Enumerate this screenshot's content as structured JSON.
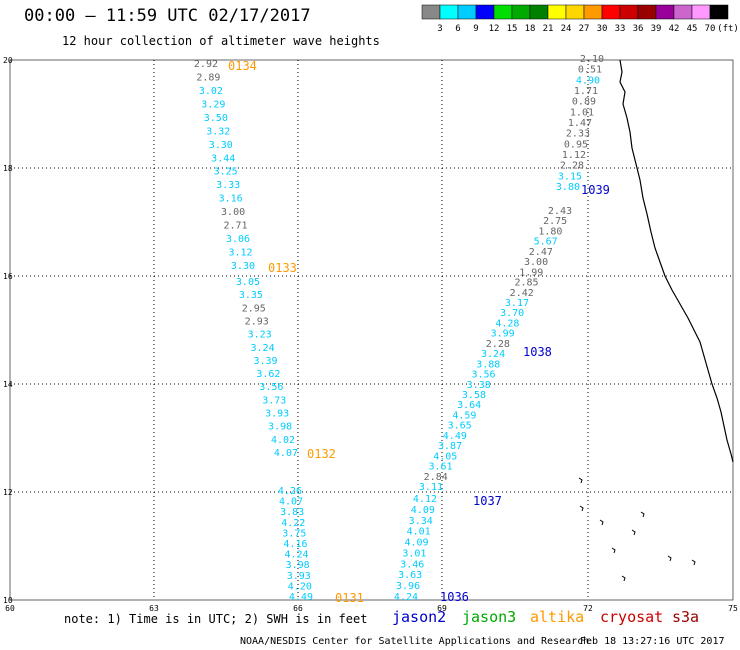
{
  "title": "00:00 – 11:59 UTC 02/17/2017",
  "subtitle": "12 hour collection of altimeter wave heights",
  "colorbar": {
    "colors": [
      "#888888",
      "#00ffff",
      "#00ccff",
      "#0000ff",
      "#00dd00",
      "#00aa00",
      "#008000",
      "#ffff00",
      "#ffd700",
      "#ff9900",
      "#ff0000",
      "#cc0000",
      "#990000",
      "#990099",
      "#cc66cc",
      "#ff99ff",
      "#000000"
    ],
    "labels": [
      "3",
      "6",
      "9",
      "12",
      "15",
      "18",
      "21",
      "24",
      "27",
      "30",
      "33",
      "36",
      "39",
      "42",
      "45",
      "70",
      "(ft)"
    ]
  },
  "map": {
    "lon_ticks": [
      "60",
      "63",
      "66",
      "69",
      "72",
      "75"
    ],
    "lat_ticks": [
      "20",
      "18",
      "16",
      "14",
      "12",
      "10"
    ]
  },
  "tracks": [
    {
      "pass": "0134",
      "pass_color": "#ff9900",
      "points": [
        {
          "v": "2.92",
          "c": "#666666"
        },
        {
          "v": "2.89",
          "c": "#666666"
        },
        {
          "v": "3.02",
          "c": "#00ccff"
        },
        {
          "v": "3.29",
          "c": "#00ccff"
        },
        {
          "v": "3.50",
          "c": "#00ccff"
        },
        {
          "v": "3.32",
          "c": "#00ccff"
        },
        {
          "v": "3.30",
          "c": "#00ccff"
        },
        {
          "v": "3.44",
          "c": "#00ccff"
        },
        {
          "v": "3.25",
          "c": "#00ccff"
        },
        {
          "v": "3.33",
          "c": "#00ccff"
        },
        {
          "v": "3.16",
          "c": "#00ccff"
        },
        {
          "v": "3.00",
          "c": "#666666"
        },
        {
          "v": "2.71",
          "c": "#666666"
        },
        {
          "v": "3.06",
          "c": "#00ccff"
        },
        {
          "v": "3.12",
          "c": "#00ccff"
        },
        {
          "v": "3.30",
          "c": "#00ccff"
        }
      ]
    },
    {
      "pass": "0133",
      "pass_color": "#ff9900",
      "points": [
        {
          "v": "3.05",
          "c": "#00ccff"
        },
        {
          "v": "3.35",
          "c": "#00ccff"
        },
        {
          "v": "2.95",
          "c": "#666666"
        },
        {
          "v": "2.93",
          "c": "#666666"
        },
        {
          "v": "3.23",
          "c": "#00ccff"
        },
        {
          "v": "3.24",
          "c": "#00ccff"
        },
        {
          "v": "3.39",
          "c": "#00ccff"
        },
        {
          "v": "3.62",
          "c": "#00ccff"
        },
        {
          "v": "3.56",
          "c": "#00ccff"
        },
        {
          "v": "3.73",
          "c": "#00ccff"
        },
        {
          "v": "3.93",
          "c": "#00ccff"
        },
        {
          "v": "3.98",
          "c": "#00ccff"
        },
        {
          "v": "4.02",
          "c": "#00ccff"
        },
        {
          "v": "4.07",
          "c": "#00ccff"
        }
      ]
    },
    {
      "pass": "0132",
      "pass_color": "#ff9900",
      "points": [
        {
          "v": "4.26",
          "c": "#00ccff"
        },
        {
          "v": "4.07",
          "c": "#00ccff"
        },
        {
          "v": "3.83",
          "c": "#00ccff"
        },
        {
          "v": "4.22",
          "c": "#00ccff"
        },
        {
          "v": "3.75",
          "c": "#00ccff"
        },
        {
          "v": "4.16",
          "c": "#00ccff"
        },
        {
          "v": "4.24",
          "c": "#00ccff"
        },
        {
          "v": "3.98",
          "c": "#00ccff"
        },
        {
          "v": "3.93",
          "c": "#00ccff"
        },
        {
          "v": "4.20",
          "c": "#00ccff"
        },
        {
          "v": "4.49",
          "c": "#00ccff"
        }
      ]
    },
    {
      "pass": "0131",
      "pass_color": "#ff9900",
      "points": []
    },
    {
      "pass": "1039",
      "pass_color": "#0000cc",
      "points": [
        {
          "v": "2.10",
          "c": "#666666"
        },
        {
          "v": "0.51",
          "c": "#666666"
        },
        {
          "v": "4.90",
          "c": "#00ccff"
        },
        {
          "v": "1.71",
          "c": "#666666"
        },
        {
          "v": "0.89",
          "c": "#666666"
        },
        {
          "v": "1.01",
          "c": "#666666"
        },
        {
          "v": "1.47",
          "c": "#666666"
        },
        {
          "v": "2.33",
          "c": "#666666"
        },
        {
          "v": "0.95",
          "c": "#666666"
        },
        {
          "v": "1.12",
          "c": "#666666"
        },
        {
          "v": "2.28",
          "c": "#666666"
        },
        {
          "v": "3.15",
          "c": "#00ccff"
        },
        {
          "v": "3.80",
          "c": "#00ccff"
        }
      ]
    },
    {
      "pass": "1038",
      "pass_color": "#0000cc",
      "points": [
        {
          "v": "2.43",
          "c": "#666666"
        },
        {
          "v": "2.75",
          "c": "#666666"
        },
        {
          "v": "1.80",
          "c": "#666666"
        },
        {
          "v": "5.67",
          "c": "#00ccff"
        },
        {
          "v": "2.47",
          "c": "#666666"
        },
        {
          "v": "3.00",
          "c": "#666666"
        },
        {
          "v": "1.99",
          "c": "#666666"
        },
        {
          "v": "2.85",
          "c": "#666666"
        },
        {
          "v": "2.42",
          "c": "#666666"
        },
        {
          "v": "3.17",
          "c": "#00ccff"
        },
        {
          "v": "3.70",
          "c": "#00ccff"
        },
        {
          "v": "4.28",
          "c": "#00ccff"
        },
        {
          "v": "3.99",
          "c": "#00ccff"
        },
        {
          "v": "2.28",
          "c": "#666666"
        },
        {
          "v": "3.24",
          "c": "#00ccff"
        },
        {
          "v": "3.88",
          "c": "#00ccff"
        },
        {
          "v": "3.56",
          "c": "#00ccff"
        },
        {
          "v": "3.38",
          "c": "#00ccff"
        },
        {
          "v": "3.58",
          "c": "#00ccff"
        },
        {
          "v": "3.64",
          "c": "#00ccff"
        },
        {
          "v": "4.59",
          "c": "#00ccff"
        },
        {
          "v": "3.65",
          "c": "#00ccff"
        },
        {
          "v": "4.49",
          "c": "#00ccff"
        },
        {
          "v": "3.87",
          "c": "#00ccff"
        },
        {
          "v": "4.05",
          "c": "#00ccff"
        },
        {
          "v": "3.61",
          "c": "#00ccff"
        },
        {
          "v": "2.84",
          "c": "#666666"
        },
        {
          "v": "3.11",
          "c": "#00ccff"
        }
      ]
    },
    {
      "pass": "1037",
      "pass_color": "#0000cc",
      "points": [
        {
          "v": "4.12",
          "c": "#00ccff"
        },
        {
          "v": "4.09",
          "c": "#00ccff"
        },
        {
          "v": "3.34",
          "c": "#00ccff"
        },
        {
          "v": "4.01",
          "c": "#00ccff"
        },
        {
          "v": "4.09",
          "c": "#00ccff"
        },
        {
          "v": "3.01",
          "c": "#00ccff"
        },
        {
          "v": "3.46",
          "c": "#00ccff"
        },
        {
          "v": "3.63",
          "c": "#00ccff"
        },
        {
          "v": "3.96",
          "c": "#00ccff"
        },
        {
          "v": "4.24",
          "c": "#00ccff"
        }
      ]
    },
    {
      "pass": "1036",
      "pass_color": "#0000cc",
      "points": []
    }
  ],
  "note": "note: 1) Time is in UTC; 2) SWH is in feet",
  "satellites": [
    {
      "name": "jason2",
      "color": "#0000cc"
    },
    {
      "name": "jason3",
      "color": "#00aa00"
    },
    {
      "name": "altika",
      "color": "#ff9900"
    },
    {
      "name": "cryosat",
      "color": "#cc0000"
    },
    {
      "name": "s3a",
      "color": "#990000"
    }
  ],
  "credit": "NOAA/NESDIS Center for Satellite Applications and Research",
  "timestamp": "Feb 18 13:27:16 UTC 2017"
}
